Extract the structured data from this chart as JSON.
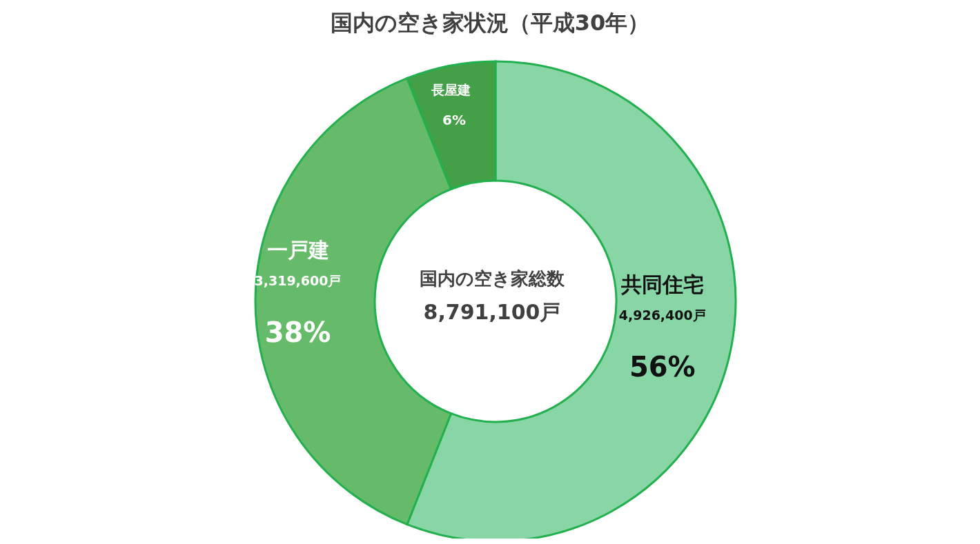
{
  "chart_data": {
    "type": "donut",
    "title": "国内の空き家状況（平成30年）",
    "categories": [
      "共同住宅",
      "一戸建",
      "長屋建"
    ],
    "values": [
      56,
      38,
      6
    ],
    "value_labels": [
      "56%",
      "38%",
      "6%"
    ],
    "colors": [
      "#88d5a6",
      "#66bb6a",
      "#43a047"
    ],
    "annotations": [
      "国内の空き家総数",
      "8,791,100戸",
      {
        "text": "4,926,400戸",
        "x": "共同住宅"
      },
      {
        "text": "3,319,600戸",
        "x": "一戸建"
      }
    ],
    "legend": false
  }
}
